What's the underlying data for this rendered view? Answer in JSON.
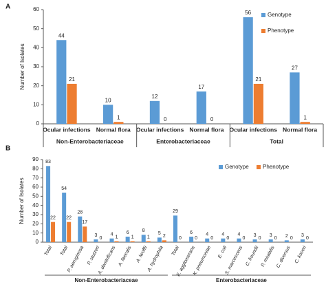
{
  "chart_data": [
    {
      "type": "bar",
      "panel": "A",
      "y_label": "Number of Isolates",
      "categories": [
        "Ocular infections",
        "Normal flora",
        "Ocular infections",
        "Normal flora",
        "Ocular infections",
        "Normal flora"
      ],
      "groups": [
        {
          "label": "Non-Enterobacteriaceae",
          "size": 2
        },
        {
          "label": "Enterobacteriaceae",
          "size": 2
        },
        {
          "label": "Total",
          "size": 2
        }
      ],
      "series": [
        {
          "name": "Genotype",
          "color": "#5b9bd5",
          "values": [
            44,
            10,
            12,
            17,
            56,
            27
          ]
        },
        {
          "name": "Phenotype",
          "color": "#ed7d31",
          "values": [
            21,
            1,
            0,
            0,
            21,
            1
          ]
        }
      ],
      "ylim": [
        0,
        60
      ],
      "yticks": [
        0,
        10,
        20,
        30,
        40,
        50,
        60
      ],
      "grid": false,
      "legend_position": "upper right"
    },
    {
      "type": "bar",
      "panel": "B",
      "y_label": "Number of Isolates",
      "categories": [
        "Total",
        "Total",
        "P. aeruginosa",
        "P. stutzeri",
        "A. denitrificans",
        "A. faecalis",
        "A. lwoffii",
        "A. hydrophila",
        "Total",
        "E. agglomerans",
        "K. pneumoniae",
        "E. coli",
        "S. marcescens",
        "C. freundii",
        "P. mirabilis",
        "C. diversus",
        "C. koseri"
      ],
      "groups": [
        {
          "label": "Non-Enterobacteriaceae",
          "size": 8
        },
        {
          "label": "Enterobacteriaceae",
          "size": 9
        }
      ],
      "series": [
        {
          "name": "Genotype",
          "color": "#5b9bd5",
          "values": [
            83,
            54,
            28,
            3,
            4,
            6,
            8,
            5,
            29,
            6,
            4,
            4,
            4,
            3,
            3,
            2,
            3
          ]
        },
        {
          "name": "Phenotype",
          "color": "#ed7d31",
          "values": [
            22,
            22,
            17,
            0,
            1,
            1,
            1,
            2,
            0,
            0,
            0,
            0,
            0,
            0,
            0,
            0,
            0
          ]
        }
      ],
      "ylim": [
        0,
        90
      ],
      "yticks": [
        0,
        10,
        20,
        30,
        40,
        50,
        60,
        70,
        80,
        90
      ],
      "grid": false,
      "legend_position": "upper right"
    }
  ]
}
